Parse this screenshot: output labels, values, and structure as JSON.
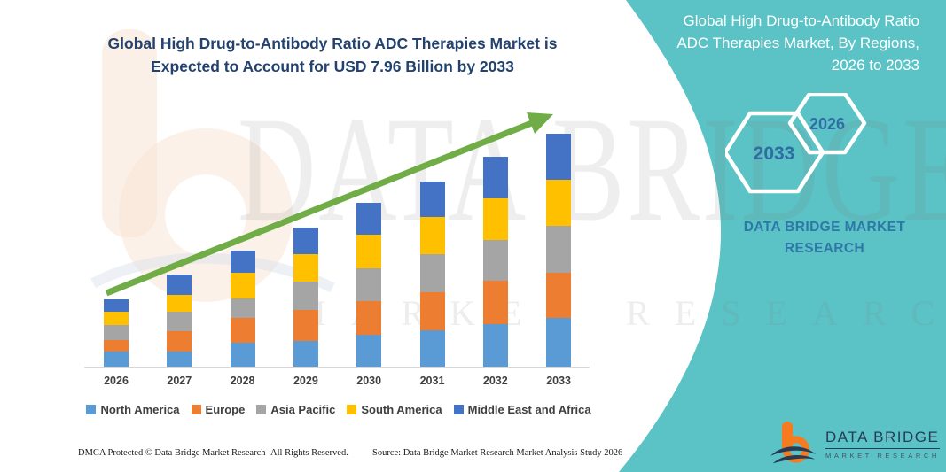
{
  "header": {
    "title_lines": [
      "Global High Drug-to-Antibody Ratio ADC Therapies Market is",
      "Expected to Account for USD 7.96 Billion by 2033"
    ]
  },
  "right_panel": {
    "title_lines": [
      "Global High Drug-to-Antibody Ratio",
      "ADC Therapies Market, By Regions,",
      "2026 to 2033"
    ],
    "hexagons": [
      {
        "label": "2033"
      },
      {
        "label": "2026"
      }
    ],
    "brand_lines": [
      "DATA BRIDGE MARKET",
      "RESEARCH"
    ]
  },
  "watermark": {
    "brand": "DATA BRIDGE",
    "sub": "MARKET RESEARCH"
  },
  "chart_data": {
    "type": "bar",
    "stacked": true,
    "title": "Global High Drug-to-Antibody Ratio ADC Therapies Market is Expected to Account for USD 7.96 Billion by 2033",
    "unit": "USD Billion",
    "categories": [
      "2026",
      "2027",
      "2028",
      "2029",
      "2030",
      "2031",
      "2032",
      "2033"
    ],
    "series": [
      {
        "name": "North America",
        "color": "#5B9BD5",
        "values": [
          0.51,
          0.51,
          0.82,
          0.88,
          1.09,
          1.24,
          1.45,
          1.66
        ]
      },
      {
        "name": "Europe",
        "color": "#ED7D31",
        "values": [
          0.39,
          0.7,
          0.85,
          1.06,
          1.15,
          1.3,
          1.48,
          1.54
        ]
      },
      {
        "name": "Asia Pacific",
        "color": "#A5A5A5",
        "values": [
          0.54,
          0.67,
          0.67,
          0.97,
          1.12,
          1.3,
          1.39,
          1.63
        ]
      },
      {
        "name": "South America",
        "color": "#FFC000",
        "values": [
          0.45,
          0.58,
          0.88,
          0.94,
          1.15,
          1.27,
          1.45,
          1.57
        ]
      },
      {
        "name": "Middle East and Africa",
        "color": "#4472C4",
        "values": [
          0.42,
          0.71,
          0.76,
          0.91,
          1.09,
          1.24,
          1.42,
          1.57
        ]
      }
    ],
    "totals_estimated": [
      2.31,
      3.17,
      3.98,
      4.76,
      5.6,
      6.35,
      7.19,
      7.97
    ],
    "stated_2033_total": 7.96,
    "xlabel": "",
    "ylabel": "",
    "y_axis_shown": false,
    "gridlines": false,
    "legend_position": "bottom",
    "trend_arrow_color": "#70AD47"
  },
  "footer": {
    "dmca": "DMCA Protected © Data Bridge Market Research-  All Rights Reserved.",
    "source": "Source: Data Bridge Market Research  Market Analysis Study 2026"
  },
  "logo": {
    "brand": "DATA BRIDGE",
    "sub": "MARKET RESEARCH"
  },
  "colors": {
    "teal_panel": "#5BC3C5",
    "title_navy": "#24426E",
    "arrow_green": "#70AD47",
    "hex_year_blue": "#2F6DA3",
    "brand_blue_on_teal": "#2E78A8",
    "logo_orange": "#F47B20",
    "logo_navy": "#263C55"
  }
}
